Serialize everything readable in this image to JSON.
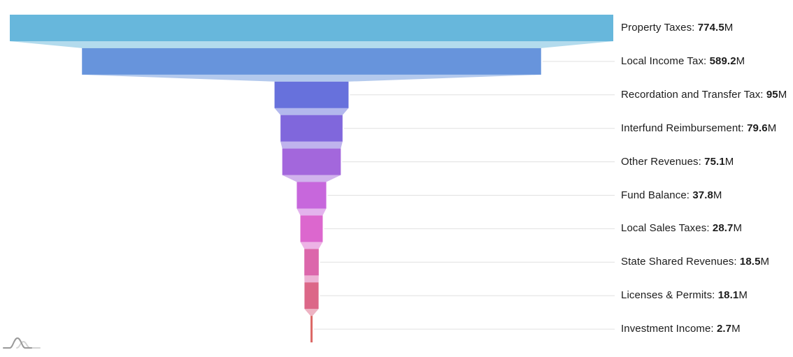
{
  "chart_data": {
    "type": "funnel",
    "title": "",
    "orientation": "vertical",
    "legend": "none",
    "grid": "ticks-to-labels",
    "label_separator": ": ",
    "value_suffix": "M",
    "items": [
      {
        "label": "Property Taxes",
        "value": 774.5,
        "value_display": "774.5",
        "color": "#67B7DC"
      },
      {
        "label": "Local Income Tax",
        "value": 589.2,
        "value_display": "589.2",
        "color": "#6794DC"
      },
      {
        "label": "Recordation and Transfer Tax",
        "value": 95,
        "value_display": "95",
        "color": "#6771DC"
      },
      {
        "label": "Interfund Reimbursement",
        "value": 79.6,
        "value_display": "79.6",
        "color": "#8067DC"
      },
      {
        "label": "Other Revenues",
        "value": 75.1,
        "value_display": "75.1",
        "color": "#A367DC"
      },
      {
        "label": "Fund Balance",
        "value": 37.8,
        "value_display": "37.8",
        "color": "#C767DC"
      },
      {
        "label": "Local Sales Taxes",
        "value": 28.7,
        "value_display": "28.7",
        "color": "#DC67CE"
      },
      {
        "label": "State Shared Revenues",
        "value": 18.5,
        "value_display": "18.5",
        "color": "#DC67AB"
      },
      {
        "label": "Licenses & Permits",
        "value": 18.1,
        "value_display": "18.1",
        "color": "#DC6788"
      },
      {
        "label": "Investment Income",
        "value": 2.7,
        "value_display": "2.7",
        "color": "#DC6967"
      }
    ],
    "colors": {
      "background": "#ffffff",
      "tick_line": "#e0e0e0",
      "label_text": "#1c1c1c",
      "link_opacity": 0.5
    }
  },
  "branding": {
    "logo": "amcharts-logo",
    "logo_colors": {
      "front_curve": "#999999",
      "back_curve": "#d4d4d4"
    }
  }
}
